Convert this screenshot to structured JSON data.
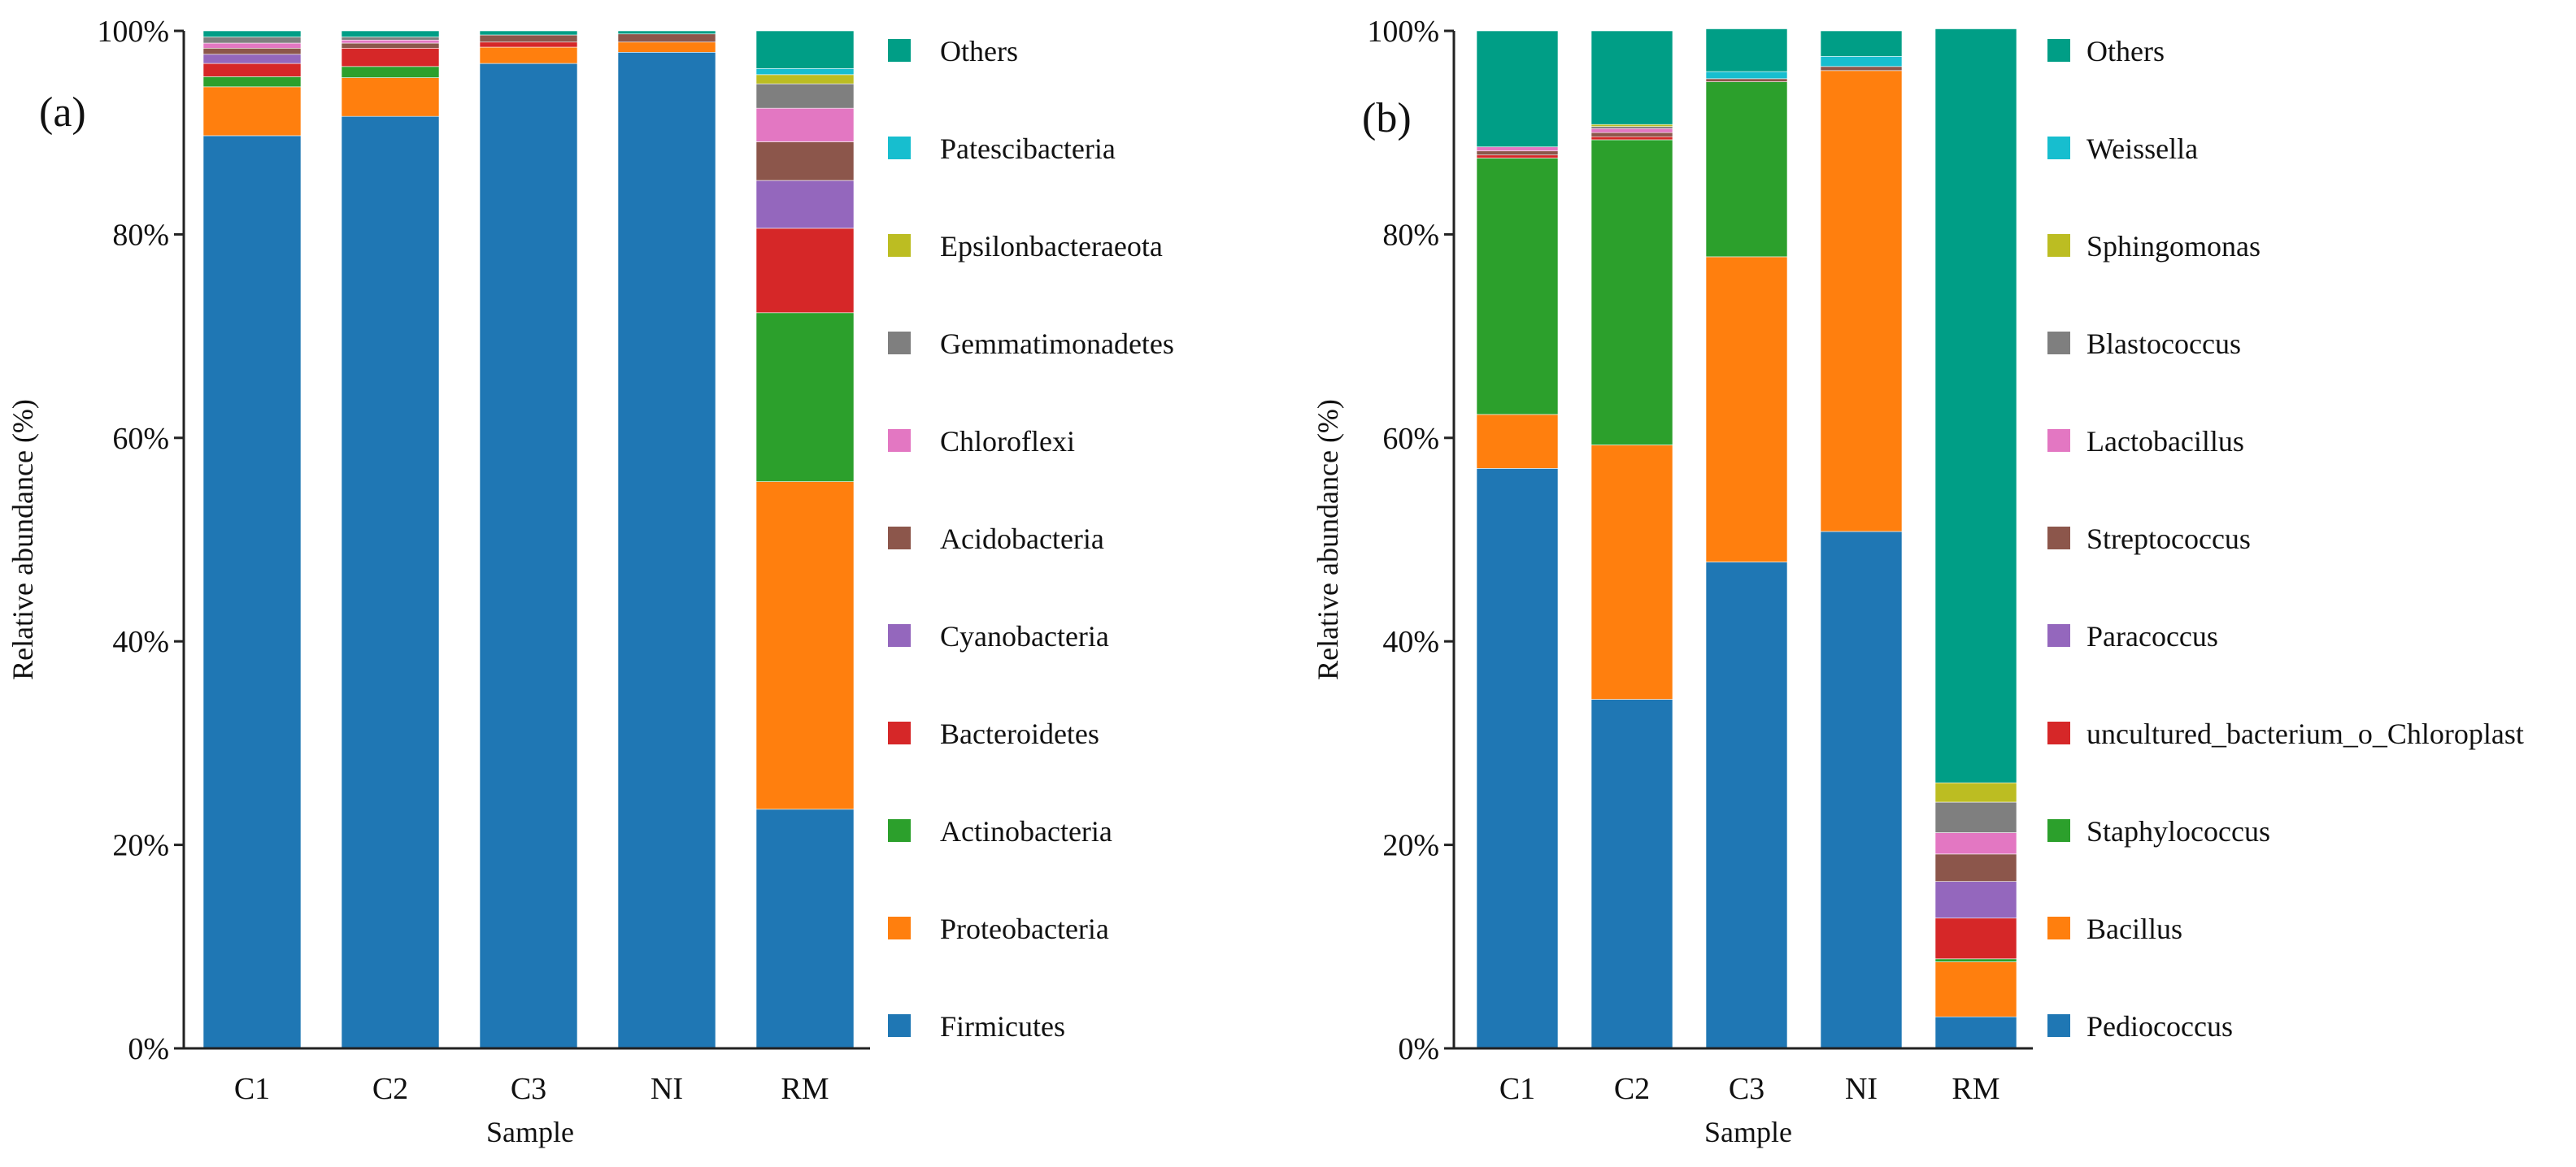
{
  "chart_data": [
    {
      "type": "bar",
      "stacked": true,
      "panel_label": "(a)",
      "xlabel": "Sample",
      "ylabel": "Relative abundance (%)",
      "ylim": [
        0,
        100
      ],
      "y_ticks": [
        "0%",
        "20%",
        "40%",
        "60%",
        "80%",
        "100%"
      ],
      "categories": [
        "C1",
        "C2",
        "C3",
        "NI",
        "RM"
      ],
      "legend_position": "right",
      "series": [
        {
          "name": "Firmicutes",
          "color": "#1f77b4",
          "values": [
            89.7,
            91.6,
            96.8,
            97.9,
            23.5
          ]
        },
        {
          "name": "Proteobacteria",
          "color": "#ff7f0e",
          "values": [
            4.8,
            3.8,
            1.6,
            1.0,
            32.2
          ]
        },
        {
          "name": "Actinobacteria",
          "color": "#2ca02c",
          "values": [
            1.0,
            1.1,
            0.0,
            0.0,
            16.6
          ]
        },
        {
          "name": "Bacteroidetes",
          "color": "#d62728",
          "values": [
            1.3,
            1.8,
            0.5,
            0.0,
            8.3
          ]
        },
        {
          "name": "Cyanobacteria",
          "color": "#9467bd",
          "values": [
            0.9,
            0.0,
            0.0,
            0.0,
            4.7
          ]
        },
        {
          "name": "Acidobacteria",
          "color": "#8c564b",
          "values": [
            0.6,
            0.5,
            0.7,
            0.8,
            3.8
          ]
        },
        {
          "name": "Chloroflexi",
          "color": "#e377c2",
          "values": [
            0.5,
            0.3,
            0.0,
            0.0,
            3.3
          ]
        },
        {
          "name": "Gemmatimonadetes",
          "color": "#7f7f7f",
          "values": [
            0.6,
            0.3,
            0.0,
            0.0,
            2.4
          ]
        },
        {
          "name": "Epsilonbacteraeota",
          "color": "#bcbd22",
          "values": [
            0.0,
            0.0,
            0.0,
            0.0,
            0.9
          ]
        },
        {
          "name": "Patescibacteria",
          "color": "#17becf",
          "values": [
            0.0,
            0.0,
            0.0,
            0.0,
            0.6
          ]
        },
        {
          "name": "Others",
          "color": "#009e86",
          "values": [
            0.6,
            0.6,
            0.4,
            0.3,
            3.7
          ]
        }
      ]
    },
    {
      "type": "bar",
      "stacked": true,
      "panel_label": "(b)",
      "xlabel": "Sample",
      "ylabel": "Relative abundance (%)",
      "ylim": [
        0,
        100
      ],
      "y_ticks": [
        "0%",
        "20%",
        "40%",
        "60%",
        "80%",
        "100%"
      ],
      "categories": [
        "C1",
        "C2",
        "C3",
        "NI",
        "RM"
      ],
      "legend_position": "right",
      "series": [
        {
          "name": "Pediococcus",
          "color": "#1f77b4",
          "values": [
            57.0,
            34.3,
            47.8,
            50.8,
            3.1
          ]
        },
        {
          "name": "Bacillus",
          "color": "#ff7f0e",
          "values": [
            5.3,
            25.0,
            30.0,
            45.3,
            5.4
          ]
        },
        {
          "name": "Staphylococcus",
          "color": "#2ca02c",
          "values": [
            25.2,
            30.0,
            17.2,
            0.0,
            0.3
          ]
        },
        {
          "name": "uncultured_bacterium_o_Chloroplast",
          "color": "#d62728",
          "values": [
            0.3,
            0.3,
            0.0,
            0.0,
            4.0
          ]
        },
        {
          "name": "Paracoccus",
          "color": "#9467bd",
          "values": [
            0.0,
            0.0,
            0.0,
            0.0,
            3.6
          ]
        },
        {
          "name": "Streptococcus",
          "color": "#8c564b",
          "values": [
            0.4,
            0.4,
            0.3,
            0.4,
            2.7
          ]
        },
        {
          "name": "Lactobacillus",
          "color": "#e377c2",
          "values": [
            0.4,
            0.4,
            0.0,
            0.0,
            2.1
          ]
        },
        {
          "name": "Blastococcus",
          "color": "#7f7f7f",
          "values": [
            0.0,
            0.2,
            0.0,
            0.0,
            3.0
          ]
        },
        {
          "name": "Sphingomonas",
          "color": "#bcbd22",
          "values": [
            0.0,
            0.2,
            0.0,
            0.0,
            1.9
          ]
        },
        {
          "name": "Weissella",
          "color": "#17becf",
          "values": [
            0.0,
            0.0,
            0.7,
            1.0,
            0.0
          ]
        },
        {
          "name": "Others",
          "color": "#009e86",
          "values": [
            11.4,
            9.2,
            4.2,
            2.5,
            74.1
          ]
        }
      ]
    }
  ]
}
